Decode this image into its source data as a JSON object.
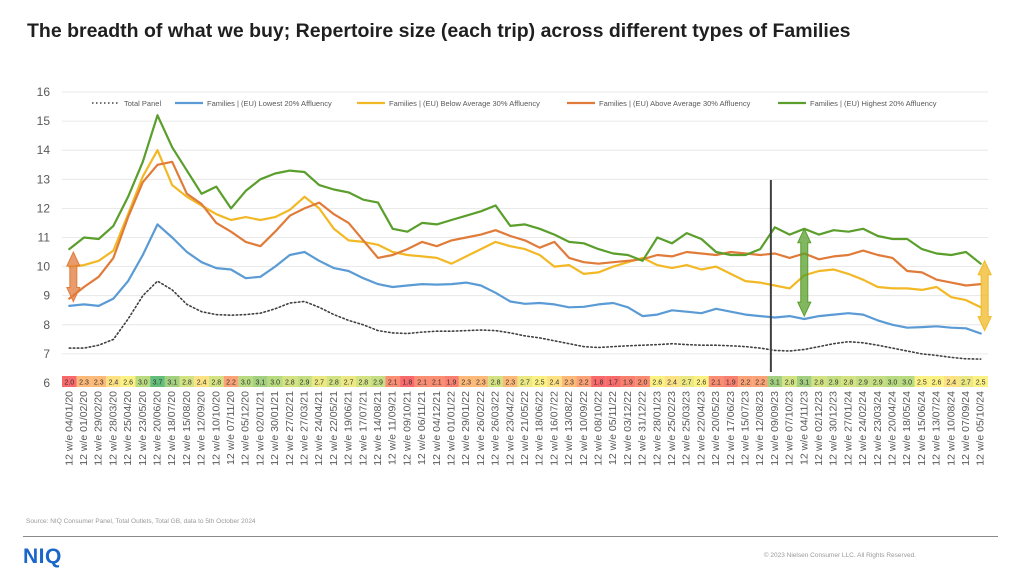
{
  "title": "The breadth of what we buy; Repertoire size (each trip) across different types of Families",
  "source": "Source: NIQ Consumer Panel, Total Outlets, Total GB, data to 5th October 2024",
  "logo": "NIQ",
  "copyright": "© 2023 Nielsen Consumer LLC. All Rights Reserved.",
  "chart_data": {
    "type": "line",
    "ylim": [
      6,
      16
    ],
    "y_ticks": [
      6,
      7,
      8,
      9,
      10,
      11,
      12,
      13,
      14,
      15,
      16
    ],
    "grid": true,
    "legend_position": "top",
    "x": [
      "12 w/e 04/01/20",
      "12 w/e 01/02/20",
      "12 w/e 29/02/20",
      "12 w/e 28/03/20",
      "12 w/e 25/04/20",
      "12 w/e 23/05/20",
      "12 w/e 20/06/20",
      "12 w/e 18/07/20",
      "12 w/e 15/08/20",
      "12 w/e 12/09/20",
      "12 w/e 10/10/20",
      "12 w/e 07/11/20",
      "12 w/e 05/12/20",
      "12 w/e 02/01/21",
      "12 w/e 30/01/21",
      "12 w/e 27/02/21",
      "12 w/e 27/03/21",
      "12 w/e 24/04/21",
      "12 w/e 22/05/21",
      "12 w/e 19/06/21",
      "12 w/e 17/07/21",
      "12 w/e 14/08/21",
      "12 w/e 11/09/21",
      "12 w/e 09/10/21",
      "12 w/e 06/11/21",
      "12 w/e 04/12/21",
      "12 w/e 01/01/22",
      "12 w/e 29/01/22",
      "12 w/e 26/02/22",
      "12 w/e 26/03/22",
      "12 w/e 23/04/22",
      "12 w/e 21/05/22",
      "12 w/e 18/06/22",
      "12 w/e 16/07/22",
      "12 w/e 13/08/22",
      "12 w/e 10/09/22",
      "12 w/e 08/10/22",
      "12 w/e 05/11/22",
      "12 w/e 03/12/22",
      "12 w/e 31/12/22",
      "12 w/e 28/01/23",
      "12 w/e 25/02/23",
      "12 w/e 25/03/23",
      "12 w/e 22/04/23",
      "12 w/e 20/05/23",
      "12 w/e 17/06/23",
      "12 w/e 15/07/23",
      "12 w/e 12/08/23",
      "12 w/e 09/09/23",
      "12 w/e 07/10/23",
      "12 w/e 04/11/23",
      "12 w/e 02/12/23",
      "12 w/e 30/12/23",
      "12 w/e 27/01/24",
      "12 w/e 24/02/24",
      "12 w/e 23/03/24",
      "12 w/e 20/04/24",
      "12 w/e 18/05/24",
      "12 w/e 15/06/24",
      "12 w/e 13/07/24",
      "12 w/e 10/08/24",
      "12 w/e 07/09/24",
      "12 w/e 05/10/24"
    ],
    "labeled_points": [
      0,
      1,
      2,
      3,
      4,
      5,
      6,
      7,
      8,
      9,
      10,
      11,
      12,
      13,
      14,
      15,
      16,
      17,
      18,
      19,
      20,
      21,
      22,
      23,
      24,
      25,
      26,
      27,
      28,
      29,
      30,
      31,
      32,
      33,
      34,
      35,
      36,
      37,
      38,
      39,
      40,
      41,
      42,
      43,
      44,
      45,
      46,
      47,
      48,
      49,
      50,
      51,
      52,
      53,
      54,
      55,
      56,
      57,
      58,
      59,
      60,
      61,
      62
    ],
    "series": [
      {
        "name": "Total Panel",
        "color": "#404040",
        "dash": "dotted",
        "values": [
          7.2,
          7.2,
          7.3,
          7.5,
          8.2,
          9.0,
          9.5,
          9.2,
          8.7,
          8.45,
          8.35,
          8.33,
          8.35,
          8.4,
          8.55,
          8.75,
          8.8,
          8.6,
          8.35,
          8.15,
          8.0,
          7.8,
          7.72,
          7.7,
          7.75,
          7.78,
          7.78,
          7.8,
          7.82,
          7.8,
          7.72,
          7.62,
          7.55,
          7.45,
          7.35,
          7.25,
          7.22,
          7.25,
          7.28,
          7.3,
          7.32,
          7.35,
          7.32,
          7.3,
          7.3,
          7.28,
          7.25,
          7.2,
          7.12,
          7.1,
          7.15,
          7.25,
          7.35,
          7.42,
          7.38,
          7.3,
          7.2,
          7.1,
          7.0,
          6.95,
          6.88,
          6.83,
          6.82
        ]
      },
      {
        "name": "Families | (EU) Lowest 20% Affluency",
        "color": "#5b9bd5",
        "dash": "solid",
        "values": [
          8.65,
          8.7,
          8.65,
          8.9,
          9.5,
          10.4,
          11.45,
          11.0,
          10.5,
          10.15,
          9.95,
          9.9,
          9.6,
          9.65,
          10.0,
          10.4,
          10.5,
          10.2,
          9.95,
          9.85,
          9.6,
          9.4,
          9.3,
          9.35,
          9.4,
          9.38,
          9.4,
          9.45,
          9.35,
          9.1,
          8.8,
          8.72,
          8.75,
          8.7,
          8.6,
          8.62,
          8.7,
          8.75,
          8.6,
          8.3,
          8.35,
          8.5,
          8.45,
          8.4,
          8.55,
          8.45,
          8.35,
          8.3,
          8.25,
          8.3,
          8.2,
          8.3,
          8.35,
          8.4,
          8.35,
          8.15,
          8.0,
          7.9,
          7.92,
          7.95,
          7.9,
          7.88,
          7.7
        ]
      },
      {
        "name": "Families | (EU) Below Average 30% Affluency",
        "color": "#f2b825",
        "dash": "solid",
        "values": [
          10.0,
          10.05,
          10.2,
          10.55,
          11.8,
          13.1,
          14.0,
          12.8,
          12.4,
          12.1,
          11.8,
          11.6,
          11.7,
          11.6,
          11.7,
          11.95,
          12.4,
          12.0,
          11.3,
          10.9,
          10.85,
          10.75,
          10.5,
          10.4,
          10.35,
          10.3,
          10.1,
          10.35,
          10.6,
          10.85,
          10.7,
          10.6,
          10.4,
          10.0,
          10.05,
          9.75,
          9.8,
          10.0,
          10.15,
          10.3,
          10.05,
          9.95,
          10.05,
          9.9,
          10.0,
          9.75,
          9.5,
          9.45,
          9.35,
          9.25,
          9.7,
          9.85,
          9.9,
          9.75,
          9.55,
          9.3,
          9.25,
          9.25,
          9.2,
          9.3,
          8.95,
          8.85,
          8.6
        ]
      },
      {
        "name": "Families | (EU) Above Average 30% Affluency",
        "color": "#e07b39",
        "dash": "solid",
        "values": [
          8.9,
          9.3,
          9.65,
          10.3,
          11.7,
          12.9,
          13.5,
          13.6,
          12.5,
          12.15,
          11.5,
          11.2,
          10.85,
          10.7,
          11.2,
          11.75,
          12.0,
          12.2,
          11.8,
          11.5,
          10.9,
          10.3,
          10.4,
          10.6,
          10.85,
          10.7,
          10.9,
          11.0,
          11.1,
          11.25,
          11.05,
          10.9,
          10.65,
          10.85,
          10.3,
          10.15,
          10.1,
          10.15,
          10.2,
          10.25,
          10.4,
          10.35,
          10.5,
          10.45,
          10.4,
          10.5,
          10.45,
          10.4,
          10.45,
          10.3,
          10.45,
          10.25,
          10.35,
          10.4,
          10.55,
          10.4,
          10.3,
          9.85,
          9.8,
          9.55,
          9.45,
          9.35,
          9.4
        ]
      },
      {
        "name": "Families | (EU) Highest 20% Affluency",
        "color": "#5a9e2c",
        "dash": "solid",
        "values": [
          10.6,
          11.0,
          10.95,
          11.4,
          12.4,
          13.6,
          15.2,
          14.1,
          13.3,
          12.5,
          12.75,
          12.0,
          12.6,
          13.0,
          13.2,
          13.3,
          13.25,
          12.8,
          12.65,
          12.55,
          12.3,
          12.2,
          11.3,
          11.2,
          11.5,
          11.45,
          11.6,
          11.75,
          11.9,
          12.1,
          11.4,
          11.45,
          11.3,
          11.1,
          10.85,
          10.8,
          10.6,
          10.45,
          10.4,
          10.2,
          11.0,
          10.8,
          11.15,
          10.95,
          10.5,
          10.4,
          10.4,
          10.6,
          11.35,
          11.1,
          11.3,
          11.1,
          11.25,
          11.2,
          11.3,
          11.05,
          10.95,
          10.95,
          10.6,
          10.45,
          10.4,
          10.5,
          10.1
        ]
      }
    ],
    "bottom_row": {
      "values": [
        "2.0",
        "2.3",
        "2.3",
        "2.4",
        "2.6",
        "3.0",
        "3.7",
        "3.1",
        "2.8",
        "2.4",
        "2.8",
        "2.2",
        "3.0",
        "3.1",
        "3.0",
        "2.8",
        "2.9",
        "2.7",
        "2.8",
        "2.7",
        "2.8",
        "2.9",
        "2.1",
        "1.8",
        "2.1",
        "2.1",
        "1.9",
        "2.3",
        "2.3",
        "2.8",
        "2.3",
        "2.7",
        "2.5",
        "2.4",
        "2.3",
        "2.2",
        "1.8",
        "1.7",
        "1.9",
        "2.0",
        "2.6",
        "2.4",
        "2.7",
        "2.6",
        "2.1",
        "1.9",
        "2.2",
        "2.2",
        "3.1",
        "2.8",
        "3.1",
        "2.8",
        "2.9",
        "2.8",
        "2.9",
        "2.9",
        "3.0",
        "3.0",
        "2.5",
        "2.6",
        "2.4",
        "2.7",
        "2.5"
      ],
      "colors": [
        "#f8696b",
        "#fcb978",
        "#fcb978",
        "#fde283",
        "#fcf284",
        "#b8db80",
        "#63be7b",
        "#a2d07f",
        "#d3e382",
        "#fde283",
        "#d3e382",
        "#fba276",
        "#b8db80",
        "#a2d07f",
        "#b8db80",
        "#d3e382",
        "#c4de81",
        "#ece983",
        "#d3e382",
        "#ece983",
        "#d3e382",
        "#c4de81",
        "#fa8e72",
        "#f8696b",
        "#fa8e72",
        "#fa8e72",
        "#f97f6f",
        "#fcb978",
        "#fcb978",
        "#d3e382",
        "#fcb978",
        "#ece983",
        "#fcf284",
        "#fde283",
        "#fcb978",
        "#fba276",
        "#f8696b",
        "#f86b6b",
        "#f97f6f",
        "#f98b70",
        "#fcf284",
        "#fde283",
        "#ece983",
        "#fcf284",
        "#fa8e72",
        "#f97f6f",
        "#fba276",
        "#fba276",
        "#a2d07f",
        "#d3e382",
        "#a2d07f",
        "#d3e382",
        "#c4de81",
        "#d3e382",
        "#c4de81",
        "#c4de81",
        "#b8db80",
        "#b8db80",
        "#fcf284",
        "#fcf284",
        "#fde283",
        "#ece983",
        "#fcf284"
      ]
    },
    "vertical_marker_index": 48,
    "range_arrows": [
      {
        "index": 0,
        "from": 8.8,
        "to": 10.5,
        "color": "#e07b39"
      },
      {
        "index": 50,
        "from": 8.3,
        "to": 11.3,
        "color": "#5a9e2c"
      },
      {
        "index": 62,
        "from": 7.8,
        "to": 10.2,
        "color": "#f2b825"
      }
    ]
  }
}
